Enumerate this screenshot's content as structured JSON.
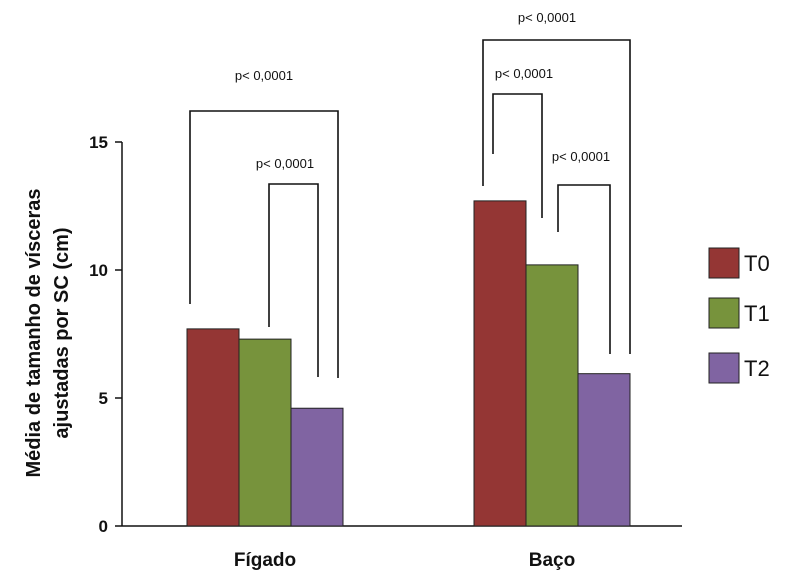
{
  "chart_data": {
    "type": "bar",
    "ylabel_line1": "Média de tamanho de vísceras",
    "ylabel_line2": "ajustadas por SC (cm)",
    "ylim": [
      0,
      15
    ],
    "yticks": [
      "0",
      "5",
      "10",
      "15"
    ],
    "categories": [
      "Fígado",
      "Baço"
    ],
    "series": [
      {
        "name": "T0",
        "values": [
          7.7,
          12.7
        ],
        "color": "#943634"
      },
      {
        "name": "T1",
        "values": [
          7.3,
          10.2
        ],
        "color": "#77933C"
      },
      {
        "name": "T2",
        "values": [
          4.6,
          5.95
        ],
        "color": "#8064A2"
      }
    ],
    "legend_position": "right",
    "significance": [
      {
        "category": "Fígado",
        "from": "T0",
        "to": "T2",
        "label": "p< 0,0001"
      },
      {
        "category": "Fígado",
        "from": "T1",
        "to": "T2",
        "label": "p< 0,0001"
      },
      {
        "category": "Baço",
        "from": "T0",
        "to": "T2",
        "label": "p< 0,0001"
      },
      {
        "category": "Baço",
        "from": "T0",
        "to": "T1",
        "label": "p< 0,0001"
      },
      {
        "category": "Baço",
        "from": "T1",
        "to": "T2",
        "label": "p< 0,0001"
      }
    ]
  }
}
